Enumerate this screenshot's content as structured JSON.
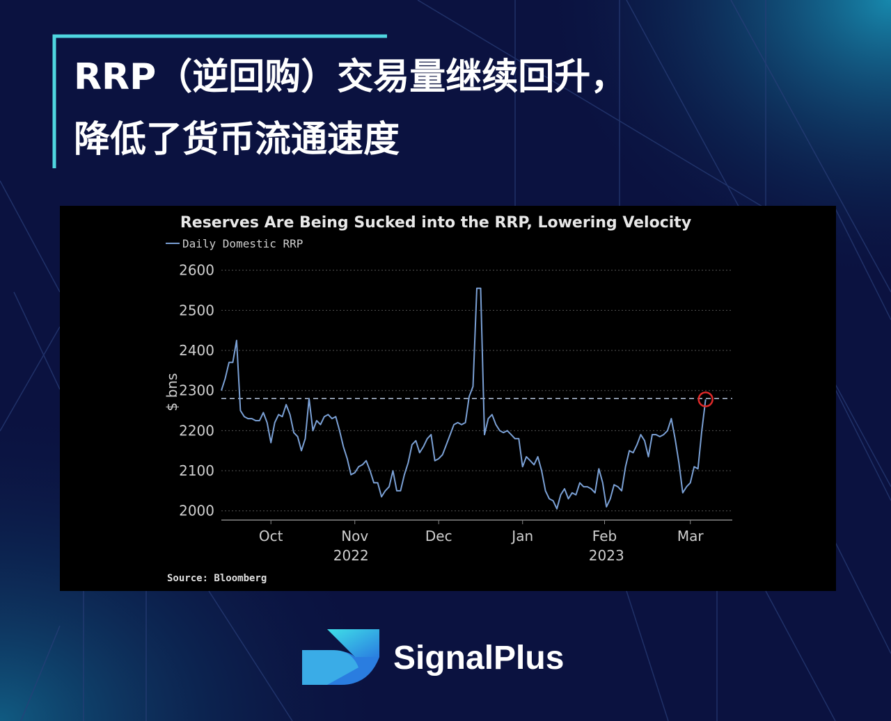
{
  "header": {
    "title_lines": [
      "RRP（逆回购）交易量继续回升，",
      "降低了货币流通速度"
    ]
  },
  "brand": "SignalPlus",
  "chart_data": {
    "type": "line",
    "title": "Reserves Are Being Sucked into the RRP, Lowering Velocity",
    "y_label": "$ bns",
    "source": "Source: Bloomberg",
    "series": [
      {
        "name": "Daily Domestic RRP",
        "color": "#7ba1d6",
        "values": [
          2300,
          2330,
          2370,
          2370,
          2425,
          2250,
          2235,
          2230,
          2230,
          2225,
          2225,
          2245,
          2220,
          2170,
          2220,
          2240,
          2235,
          2265,
          2240,
          2195,
          2185,
          2150,
          2180,
          2280,
          2200,
          2225,
          2215,
          2235,
          2240,
          2230,
          2235,
          2200,
          2160,
          2130,
          2090,
          2095,
          2110,
          2115,
          2125,
          2100,
          2070,
          2070,
          2035,
          2050,
          2060,
          2100,
          2050,
          2050,
          2090,
          2120,
          2165,
          2175,
          2145,
          2160,
          2180,
          2190,
          2125,
          2130,
          2140,
          2165,
          2190,
          2215,
          2220,
          2215,
          2220,
          2285,
          2310,
          2555,
          2555,
          2190,
          2230,
          2240,
          2215,
          2200,
          2195,
          2200,
          2190,
          2180,
          2180,
          2110,
          2135,
          2125,
          2115,
          2135,
          2100,
          2050,
          2030,
          2025,
          2005,
          2040,
          2055,
          2030,
          2045,
          2040,
          2070,
          2060,
          2060,
          2055,
          2045,
          2105,
          2070,
          2010,
          2030,
          2065,
          2060,
          2050,
          2110,
          2150,
          2145,
          2165,
          2190,
          2175,
          2135,
          2190,
          2190,
          2185,
          2190,
          2200,
          2230,
          2180,
          2120,
          2045,
          2060,
          2070,
          2110,
          2105,
          2200,
          2278
        ]
      }
    ],
    "reference_line": 2280,
    "xlim": [
      0,
      134
    ],
    "xticks": [
      {
        "value": 13,
        "label": "Oct"
      },
      {
        "value": 35,
        "label": "Nov"
      },
      {
        "value": 57,
        "label": "Dec"
      },
      {
        "value": 79,
        "label": "Jan"
      },
      {
        "value": 100.5,
        "label": "Feb"
      },
      {
        "value": 123,
        "label": "Mar"
      }
    ],
    "xyears": [
      {
        "value": 34,
        "label": "2022"
      },
      {
        "value": 101,
        "label": "2023"
      }
    ],
    "ylim": [
      1977,
      2615
    ],
    "yticks": [
      2000,
      2100,
      2200,
      2300,
      2400,
      2500,
      2600
    ],
    "grid": true
  }
}
